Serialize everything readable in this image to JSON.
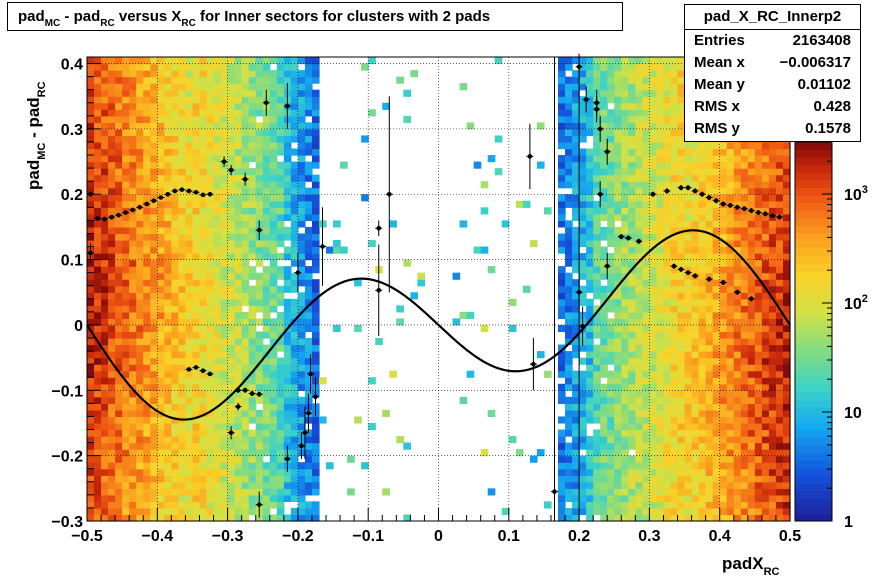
{
  "title": {
    "parts": [
      {
        "t": "pad",
        "s": "n"
      },
      {
        "t": "MC",
        "s": "sub"
      },
      {
        "t": " - pad",
        "s": "n"
      },
      {
        "t": "RC",
        "s": "sub"
      },
      {
        "t": " versus X",
        "s": "n"
      },
      {
        "t": "RC",
        "s": "sub"
      },
      {
        "t": " for Inner sectors for clusters with 2 pads",
        "s": "n"
      }
    ]
  },
  "stats": {
    "name": "pad_X_RC_Innerp2",
    "rows": [
      {
        "label": "Entries",
        "value": "2163408"
      },
      {
        "label": "Mean x",
        "value": "−0.006317"
      },
      {
        "label": "Mean y",
        "value": "0.01102"
      },
      {
        "label": "RMS x",
        "value": "0.428"
      },
      {
        "label": "RMS y",
        "value": "0.1578"
      }
    ]
  },
  "chart_data": {
    "type": "heatmap",
    "title": "pad_MC - pad_RC versus X_RC for Inner sectors for clusters with 2 pads",
    "xlabel": "padX_RC",
    "ylabel": "pad_MC - pad_RC",
    "xlim": [
      -0.5,
      0.5
    ],
    "ylim": [
      -0.3,
      0.41
    ],
    "x_ticks": [
      "−0.5",
      "−0.4",
      "−0.3",
      "−0.2",
      "−0.1",
      "0",
      "0.1",
      "0.2",
      "0.3",
      "0.4",
      "0.5"
    ],
    "y_ticks": [
      "−0.3",
      "−0.2",
      "−0.1",
      "0",
      "0.1",
      "0.2",
      "0.3",
      "0.4"
    ],
    "z_scale": "log",
    "z_ticks": [
      "1",
      "10",
      "10^2",
      "10^3"
    ],
    "z_range": [
      1,
      3000
    ],
    "grid": true,
    "profile_points": [
      {
        "x": -0.495,
        "y": 0.11,
        "e": 0.015
      },
      {
        "x": -0.495,
        "y": 0.2,
        "e": 0.003
      },
      {
        "x": -0.485,
        "y": 0.163,
        "e": 0.003
      },
      {
        "x": -0.475,
        "y": 0.162,
        "e": 0.003
      },
      {
        "x": -0.465,
        "y": 0.165,
        "e": 0.003
      },
      {
        "x": -0.455,
        "y": 0.168,
        "e": 0.003
      },
      {
        "x": -0.445,
        "y": 0.172,
        "e": 0.003
      },
      {
        "x": -0.435,
        "y": 0.176,
        "e": 0.003
      },
      {
        "x": -0.425,
        "y": 0.18,
        "e": 0.003
      },
      {
        "x": -0.415,
        "y": 0.185,
        "e": 0.003
      },
      {
        "x": -0.405,
        "y": 0.19,
        "e": 0.003
      },
      {
        "x": -0.395,
        "y": 0.195,
        "e": 0.003
      },
      {
        "x": -0.385,
        "y": 0.2,
        "e": 0.003
      },
      {
        "x": -0.375,
        "y": 0.205,
        "e": 0.003
      },
      {
        "x": -0.365,
        "y": 0.207,
        "e": 0.003
      },
      {
        "x": -0.355,
        "y": 0.205,
        "e": 0.003
      },
      {
        "x": -0.345,
        "y": 0.203,
        "e": 0.003
      },
      {
        "x": -0.335,
        "y": 0.199,
        "e": 0.003
      },
      {
        "x": -0.325,
        "y": 0.2,
        "e": 0.003
      },
      {
        "x": -0.305,
        "y": 0.25,
        "e": 0.008
      },
      {
        "x": -0.295,
        "y": 0.237,
        "e": 0.008
      },
      {
        "x": -0.275,
        "y": 0.223,
        "e": 0.01
      },
      {
        "x": -0.255,
        "y": 0.145,
        "e": 0.015
      },
      {
        "x": -0.245,
        "y": 0.34,
        "e": 0.02
      },
      {
        "x": -0.215,
        "y": 0.335,
        "e": 0.035
      },
      {
        "x": -0.2,
        "y": 0.08,
        "e": 0.03
      },
      {
        "x": -0.165,
        "y": 0.12,
        "e": 0.06
      },
      {
        "x": -0.085,
        "y": 0.148,
        "e": 0.012
      },
      {
        "x": -0.085,
        "y": 0.053,
        "e": 0.07
      },
      {
        "x": -0.07,
        "y": 0.2,
        "e": 0.15
      },
      {
        "x": -0.255,
        "y": -0.106,
        "e": 0.004
      },
      {
        "x": -0.265,
        "y": -0.105,
        "e": 0.004
      },
      {
        "x": -0.275,
        "y": -0.1,
        "e": 0.004
      },
      {
        "x": -0.285,
        "y": -0.1,
        "e": 0.004
      },
      {
        "x": -0.295,
        "y": -0.165,
        "e": 0.01
      },
      {
        "x": -0.285,
        "y": -0.125,
        "e": 0.006
      },
      {
        "x": -0.255,
        "y": -0.275,
        "e": 0.02
      },
      {
        "x": -0.215,
        "y": -0.205,
        "e": 0.02
      },
      {
        "x": -0.19,
        "y": -0.165,
        "e": 0.04
      },
      {
        "x": -0.195,
        "y": -0.185,
        "e": 0.02
      },
      {
        "x": -0.185,
        "y": -0.135,
        "e": 0.03
      },
      {
        "x": -0.182,
        "y": -0.075,
        "e": 0.03
      },
      {
        "x": -0.175,
        "y": -0.11,
        "e": 0.03
      },
      {
        "x": -0.325,
        "y": -0.075,
        "e": 0.003
      },
      {
        "x": -0.335,
        "y": -0.07,
        "e": 0.003
      },
      {
        "x": -0.345,
        "y": -0.065,
        "e": 0.003
      },
      {
        "x": -0.355,
        "y": -0.068,
        "e": 0.003
      },
      {
        "x": 0.13,
        "y": 0.258,
        "e": 0.05
      },
      {
        "x": 0.135,
        "y": -0.06,
        "e": 0.04
      },
      {
        "x": 0.165,
        "y": -0.255,
        "e": 0.02
      },
      {
        "x": 0.2,
        "y": 0.05,
        "e": 0.02
      },
      {
        "x": 0.2,
        "y": 0.395,
        "e": 0.02
      },
      {
        "x": 0.205,
        "y": -0.002,
        "e": 0.03
      },
      {
        "x": 0.21,
        "y": 0.345,
        "e": 0.02
      },
      {
        "x": 0.225,
        "y": 0.34,
        "e": 0.02
      },
      {
        "x": 0.225,
        "y": 0.33,
        "e": 0.02
      },
      {
        "x": 0.23,
        "y": 0.3,
        "e": 0.02
      },
      {
        "x": 0.23,
        "y": 0.2,
        "e": 0.02
      },
      {
        "x": 0.24,
        "y": 0.265,
        "e": 0.02
      },
      {
        "x": 0.24,
        "y": 0.09,
        "e": 0.02
      },
      {
        "x": 0.26,
        "y": 0.135,
        "e": 0.004
      },
      {
        "x": 0.27,
        "y": 0.133,
        "e": 0.004
      },
      {
        "x": 0.285,
        "y": 0.128,
        "e": 0.004
      },
      {
        "x": 0.305,
        "y": 0.2,
        "e": 0.004
      },
      {
        "x": 0.325,
        "y": 0.205,
        "e": 0.004
      },
      {
        "x": 0.345,
        "y": 0.21,
        "e": 0.004
      },
      {
        "x": 0.355,
        "y": 0.21,
        "e": 0.004
      },
      {
        "x": 0.365,
        "y": 0.205,
        "e": 0.004
      },
      {
        "x": 0.375,
        "y": 0.2,
        "e": 0.004
      },
      {
        "x": 0.385,
        "y": 0.195,
        "e": 0.004
      },
      {
        "x": 0.395,
        "y": 0.19,
        "e": 0.004
      },
      {
        "x": 0.405,
        "y": 0.185,
        "e": 0.004
      },
      {
        "x": 0.415,
        "y": 0.183,
        "e": 0.004
      },
      {
        "x": 0.425,
        "y": 0.18,
        "e": 0.004
      },
      {
        "x": 0.435,
        "y": 0.178,
        "e": 0.004
      },
      {
        "x": 0.445,
        "y": 0.175,
        "e": 0.004
      },
      {
        "x": 0.455,
        "y": 0.172,
        "e": 0.004
      },
      {
        "x": 0.465,
        "y": 0.17,
        "e": 0.004
      },
      {
        "x": 0.475,
        "y": 0.167,
        "e": 0.004
      },
      {
        "x": 0.485,
        "y": 0.165,
        "e": 0.004
      },
      {
        "x": 0.335,
        "y": 0.09,
        "e": 0.004
      },
      {
        "x": 0.345,
        "y": 0.085,
        "e": 0.004
      },
      {
        "x": 0.355,
        "y": 0.08,
        "e": 0.004
      },
      {
        "x": 0.365,
        "y": 0.075,
        "e": 0.004
      },
      {
        "x": 0.385,
        "y": 0.07,
        "e": 0.004
      },
      {
        "x": 0.405,
        "y": 0.065,
        "e": 0.004
      },
      {
        "x": 0.425,
        "y": 0.05,
        "e": 0.004
      },
      {
        "x": 0.445,
        "y": 0.04,
        "e": 0.004
      }
    ],
    "fit_curve": {
      "form": "A*sin(2*pi*x)+B*sin(4*pi*x)",
      "A": 0.0525,
      "B": -0.1062
    }
  }
}
